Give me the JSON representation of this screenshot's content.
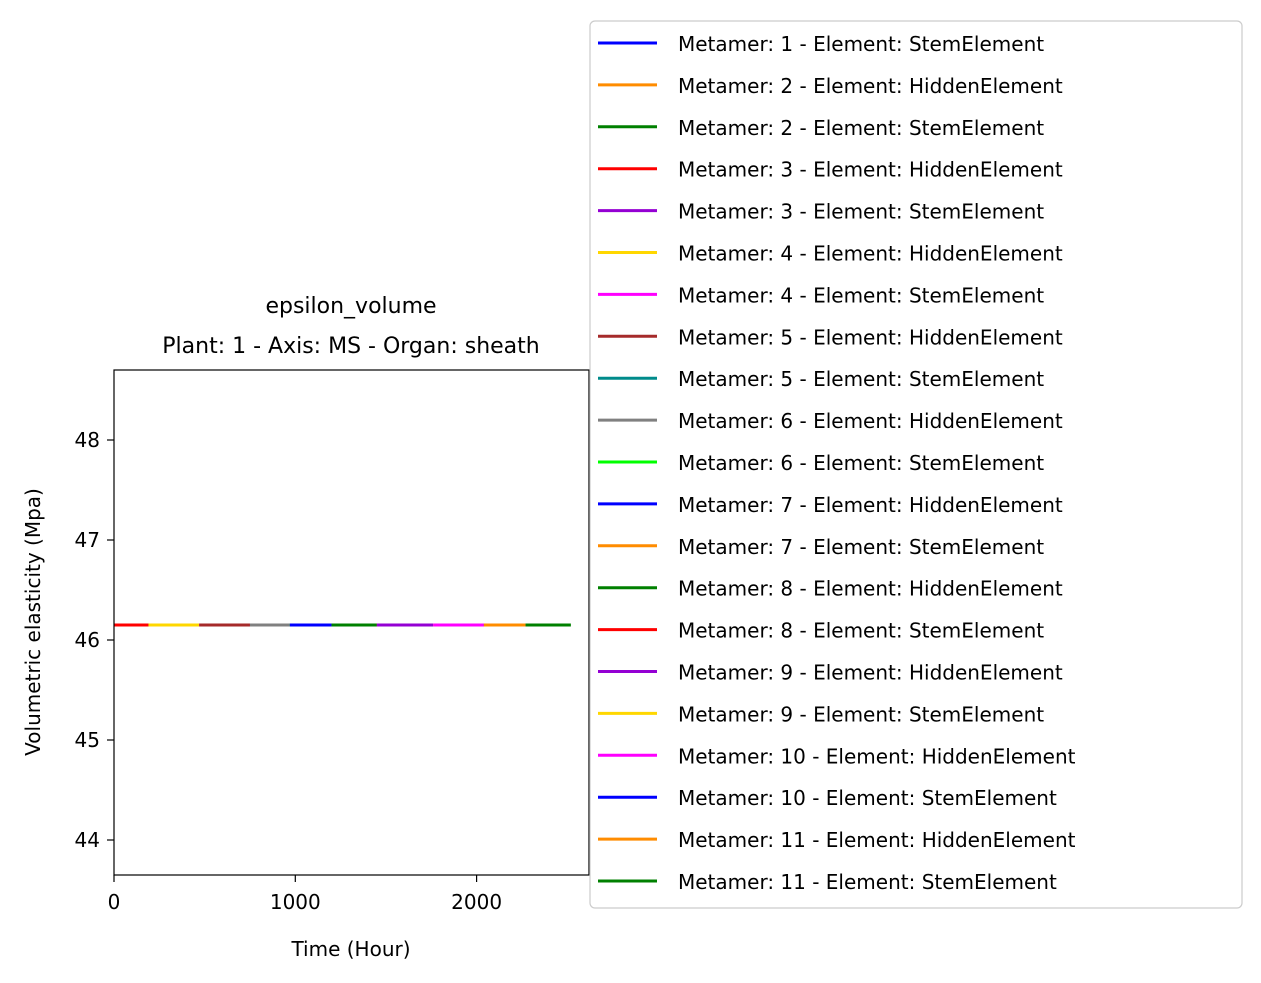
{
  "chart_data": {
    "type": "line",
    "title": "epsilon_volume",
    "subtitle": "Plant: 1 - Axis: MS - Organ: sheath",
    "xlabel": "Time (Hour)",
    "ylabel": "Volumetric elasticity (Mpa)",
    "xlim": [
      0,
      2620
    ],
    "ylim": [
      43.65,
      48.7
    ],
    "xticks": [
      0,
      1000,
      2000
    ],
    "yticks": [
      44,
      45,
      46,
      47,
      48
    ],
    "grid": false,
    "legend_position": "right, outside plot area",
    "series": [
      {
        "name": "Metamer: 1 - Element: StemElement",
        "color": "#0000ff",
        "x": [
          0,
          190
        ],
        "y": [
          46.15,
          46.15
        ]
      },
      {
        "name": "Metamer: 2 - Element: HiddenElement",
        "color": "#ff8c00",
        "x": [
          0,
          190
        ],
        "y": [
          46.15,
          46.15
        ]
      },
      {
        "name": "Metamer: 2 - Element: StemElement",
        "color": "#008000",
        "x": [
          0,
          190
        ],
        "y": [
          46.15,
          46.15
        ]
      },
      {
        "name": "Metamer: 3 - Element: HiddenElement",
        "color": "#ff0000",
        "x": [
          0,
          190
        ],
        "y": [
          46.15,
          46.15
        ]
      },
      {
        "name": "Metamer: 3 - Element: StemElement",
        "color": "#9400d3",
        "x": [
          190,
          470
        ],
        "y": [
          46.15,
          46.15
        ]
      },
      {
        "name": "Metamer: 4 - Element: HiddenElement",
        "color": "#ffd700",
        "x": [
          190,
          470
        ],
        "y": [
          46.15,
          46.15
        ]
      },
      {
        "name": "Metamer: 4 - Element: StemElement",
        "color": "#ff00ff",
        "x": [
          470,
          750
        ],
        "y": [
          46.15,
          46.15
        ]
      },
      {
        "name": "Metamer: 5 - Element: HiddenElement",
        "color": "#a52a2a",
        "x": [
          470,
          750
        ],
        "y": [
          46.15,
          46.15
        ]
      },
      {
        "name": "Metamer: 5 - Element: StemElement",
        "color": "#008b8b",
        "x": [
          750,
          970
        ],
        "y": [
          46.15,
          46.15
        ]
      },
      {
        "name": "Metamer: 6 - Element: HiddenElement",
        "color": "#808080",
        "x": [
          750,
          970
        ],
        "y": [
          46.15,
          46.15
        ]
      },
      {
        "name": "Metamer: 6 - Element: StemElement",
        "color": "#00ff00",
        "x": [
          970,
          1200
        ],
        "y": [
          46.15,
          46.15
        ]
      },
      {
        "name": "Metamer: 7 - Element: HiddenElement",
        "color": "#0000ff",
        "x": [
          970,
          1200
        ],
        "y": [
          46.15,
          46.15
        ]
      },
      {
        "name": "Metamer: 7 - Element: StemElement",
        "color": "#ff8c00",
        "x": [
          1200,
          1450
        ],
        "y": [
          46.15,
          46.15
        ]
      },
      {
        "name": "Metamer: 8 - Element: HiddenElement",
        "color": "#008000",
        "x": [
          1200,
          1450
        ],
        "y": [
          46.15,
          46.15
        ]
      },
      {
        "name": "Metamer: 8 - Element: StemElement",
        "color": "#ff0000",
        "x": [
          1450,
          1760
        ],
        "y": [
          46.15,
          46.15
        ]
      },
      {
        "name": "Metamer: 9 - Element: HiddenElement",
        "color": "#9400d3",
        "x": [
          1450,
          1760
        ],
        "y": [
          46.15,
          46.15
        ]
      },
      {
        "name": "Metamer: 9 - Element: StemElement",
        "color": "#ffd700",
        "x": [
          1760,
          2040
        ],
        "y": [
          46.15,
          46.15
        ]
      },
      {
        "name": "Metamer: 10 - Element: HiddenElement",
        "color": "#ff00ff",
        "x": [
          1760,
          2040
        ],
        "y": [
          46.15,
          46.15
        ]
      },
      {
        "name": "Metamer: 10 - Element: StemElement",
        "color": "#0000ff",
        "x": [
          2040,
          2270
        ],
        "y": [
          46.15,
          46.15
        ]
      },
      {
        "name": "Metamer: 11 - Element: HiddenElement",
        "color": "#ff8c00",
        "x": [
          2040,
          2270
        ],
        "y": [
          46.15,
          46.15
        ]
      },
      {
        "name": "Metamer: 11 - Element: StemElement",
        "color": "#008000",
        "x": [
          2270,
          2520
        ],
        "y": [
          46.15,
          46.15
        ]
      }
    ]
  }
}
